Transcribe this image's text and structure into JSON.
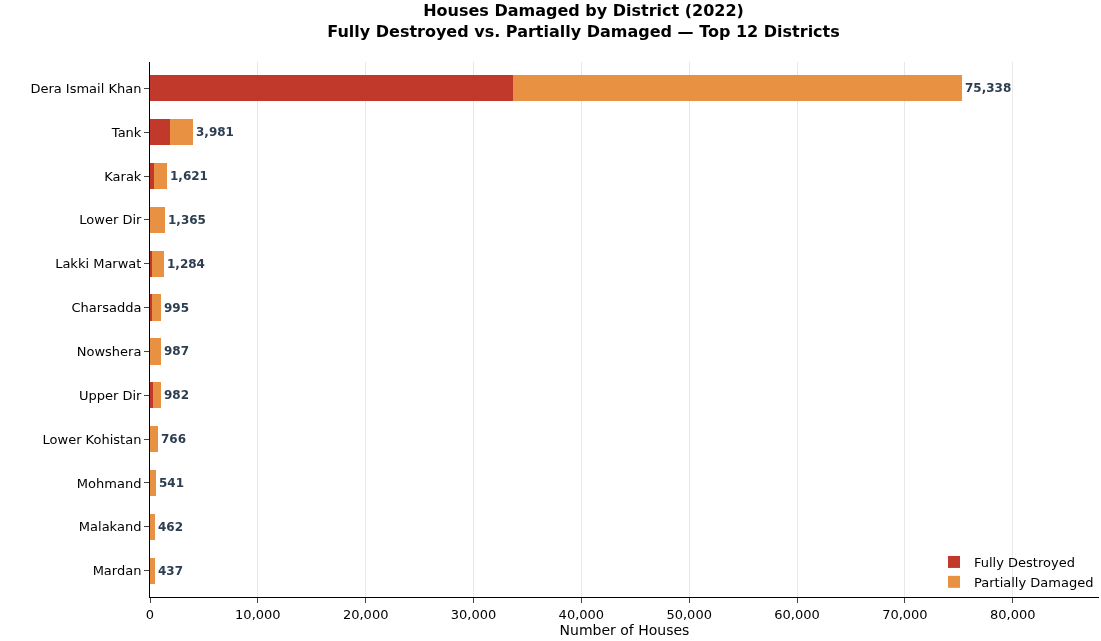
{
  "chart_data": {
    "type": "bar",
    "orientation": "horizontal",
    "stacked": true,
    "title": "Houses Damaged by District (2022)",
    "subtitle": "Fully Destroyed vs. Partially Damaged — Top 12 Districts",
    "xlabel": "Number of Houses",
    "categories": [
      "Dera Ismail Khan",
      "Tank",
      "Karak",
      "Lower Dir",
      "Lakki Marwat",
      "Charsadda",
      "Nowshera",
      "Upper Dir",
      "Lower Kohistan",
      "Mohmand",
      "Malakand",
      "Mardan"
    ],
    "series": [
      {
        "name": "Fully Destroyed",
        "color": "#c0392b",
        "values": [
          33700,
          1900,
          400,
          0,
          200,
          150,
          0,
          300,
          0,
          0,
          0,
          null
        ]
      },
      {
        "name": "Partially Damaged",
        "color": "#e89143",
        "values": [
          41638,
          2081,
          1221,
          1365,
          1084,
          845,
          987,
          682,
          766,
          541,
          462,
          437
        ]
      }
    ],
    "totals": [
      "75,338",
      "3,981",
      "1,621",
      "1,365",
      "1,284",
      "995",
      "987",
      "982",
      "766",
      "541",
      "462",
      "437"
    ],
    "xlim": [
      0,
      88000
    ],
    "xticks": [
      {
        "value": 0,
        "label": "0"
      },
      {
        "value": 10000,
        "label": "10,000"
      },
      {
        "value": 20000,
        "label": "20,000"
      },
      {
        "value": 30000,
        "label": "30,000"
      },
      {
        "value": 40000,
        "label": "40,000"
      },
      {
        "value": 50000,
        "label": "50,000"
      },
      {
        "value": 60000,
        "label": "60,000"
      },
      {
        "value": 70000,
        "label": "70,000"
      },
      {
        "value": 80000,
        "label": "80,000"
      }
    ],
    "grid": "x",
    "legend": "bottom right"
  }
}
